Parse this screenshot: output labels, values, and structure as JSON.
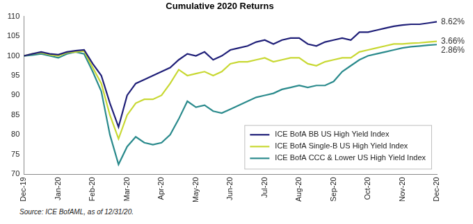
{
  "chart_data": {
    "type": "line",
    "title": "Cumulative 2020 Returns",
    "source": "Source: ICE BofAML, as of 12/31/20.",
    "categories": [
      "Dec-19",
      null,
      null,
      null,
      "Jan-20",
      null,
      null,
      null,
      "Feb-20",
      null,
      null,
      null,
      "Mar-20",
      null,
      null,
      null,
      "Apr-20",
      null,
      null,
      null,
      "May-20",
      null,
      null,
      null,
      "Jun-20",
      null,
      null,
      null,
      "Jul-20",
      null,
      null,
      null,
      "Aug-20",
      null,
      null,
      null,
      "Sep-20",
      null,
      null,
      null,
      "Oct-20",
      null,
      null,
      null,
      "Nov-20",
      null,
      null,
      null,
      "Dec-20"
    ],
    "series": [
      {
        "name": "ICE BofA BB US High Yield Index",
        "color": "#1f1f78",
        "values": [
          100,
          100.5,
          101,
          100.5,
          100.3,
          101,
          101.3,
          101.5,
          98,
          95,
          88,
          82,
          90,
          93,
          94,
          95,
          96,
          97,
          99,
          100.5,
          100,
          101,
          99,
          100,
          101.5,
          102,
          102.5,
          103.5,
          104,
          103,
          104,
          104.5,
          104.5,
          103,
          102.5,
          103.5,
          104,
          104.5,
          104,
          106,
          106,
          106.5,
          107,
          107.5,
          107.8,
          108,
          108,
          108.3,
          108.62
        ]
      },
      {
        "name": "ICE BofA Single-B US High Yield Index",
        "color": "#c8d832",
        "values": [
          100,
          100.5,
          100.8,
          100.3,
          100,
          100.8,
          101,
          101.2,
          97,
          93,
          85,
          79,
          85,
          88,
          89,
          89,
          90,
          93,
          96.5,
          95,
          95.5,
          96,
          95,
          96,
          98,
          98.5,
          98.5,
          99,
          99.5,
          98.5,
          99,
          99.5,
          99.5,
          98,
          97.5,
          98.5,
          99,
          99.5,
          99.5,
          101,
          101.5,
          102,
          102.5,
          103,
          103,
          103.2,
          103.3,
          103.5,
          103.66
        ]
      },
      {
        "name": "ICE BofA CCC & Lower US High Yield Index",
        "color": "#2a8a8c",
        "values": [
          100,
          100.2,
          100.5,
          100,
          99.5,
          100.5,
          101,
          100.5,
          96,
          91,
          80,
          72.5,
          77,
          79.5,
          78,
          77.5,
          78,
          80,
          84,
          88.5,
          87,
          87.5,
          86,
          85.5,
          86.5,
          87.5,
          88.5,
          89.5,
          90,
          90.5,
          91.5,
          92,
          92.5,
          92,
          92.5,
          92.5,
          93.5,
          96,
          97.5,
          99,
          100,
          100.5,
          101,
          101.5,
          102,
          102.3,
          102.5,
          102.7,
          102.86
        ]
      }
    ],
    "annotations": [
      {
        "text": "8.62%",
        "series": "ICE BofA BB US High Yield Index"
      },
      {
        "text": "3.66%",
        "series": "ICE BofA Single-B US High Yield Index"
      },
      {
        "text": "2.86%",
        "series": "ICE BofA CCC & Lower US High Yield Index"
      }
    ],
    "ylim": [
      70,
      110
    ],
    "yticks": [
      70,
      75,
      80,
      85,
      90,
      95,
      100,
      105,
      110
    ],
    "grid": false,
    "legend": "lower right"
  }
}
